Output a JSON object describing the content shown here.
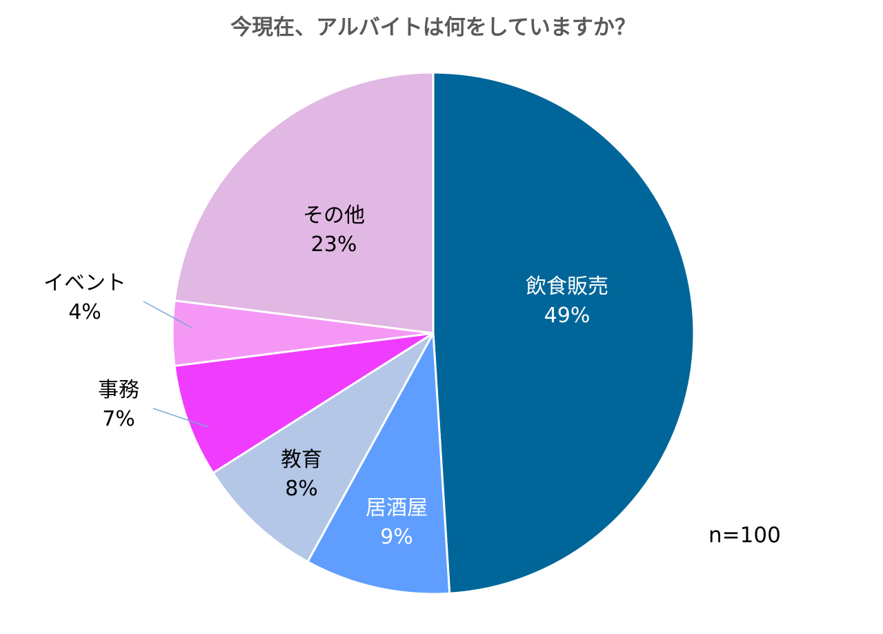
{
  "chart_data": {
    "type": "pie",
    "title": "今現在、アルバイトは何をしていますか？",
    "note": "n=100",
    "start": "top",
    "direction": "clockwise",
    "slices": [
      {
        "label": "飲食販売",
        "value": 49,
        "pct_text": "49%",
        "color": "#006699"
      },
      {
        "label": "居酒屋",
        "value": 9,
        "pct_text": "9%",
        "color": "#5F9EFF"
      },
      {
        "label": "教育",
        "value": 8,
        "pct_text": "8%",
        "color": "#B4C7E7"
      },
      {
        "label": "事務",
        "value": 7,
        "pct_text": "7%",
        "color": "#F03CFF"
      },
      {
        "label": "イベント",
        "value": 4,
        "pct_text": "4%",
        "color": "#F598F5"
      },
      {
        "label": "その他",
        "value": 23,
        "pct_text": "23%",
        "color": "#E1B7E3"
      }
    ]
  }
}
